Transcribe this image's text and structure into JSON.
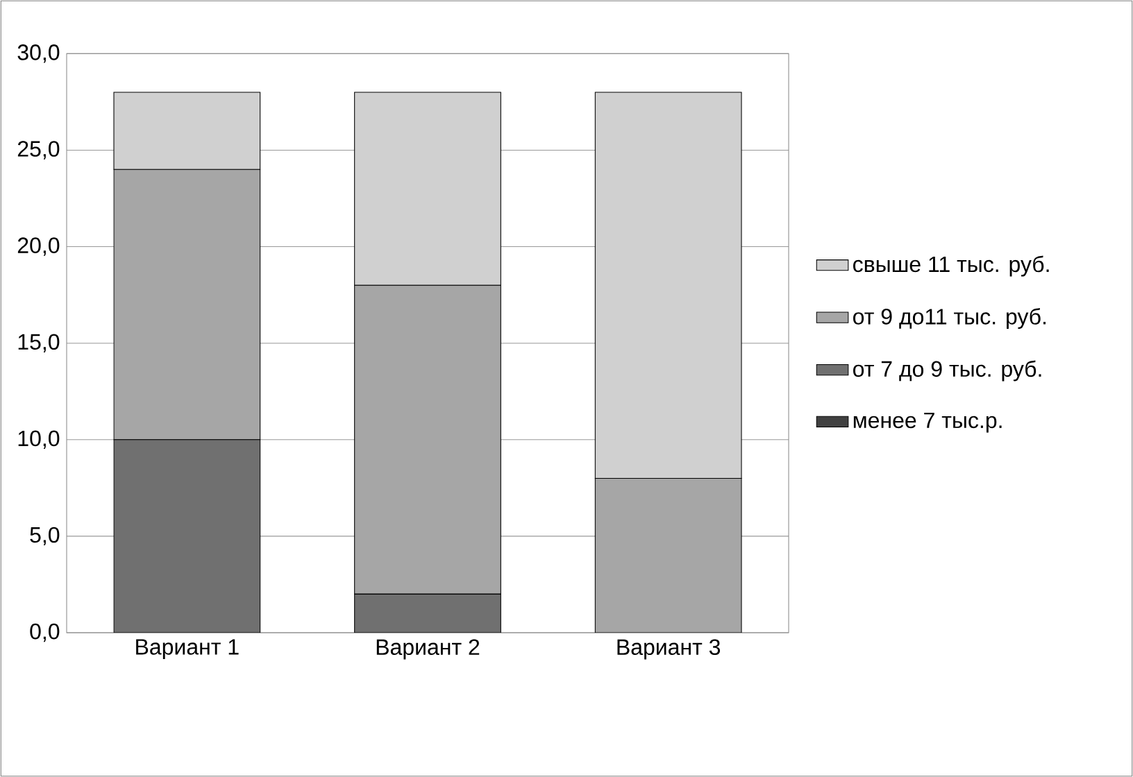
{
  "chart_data": {
    "type": "bar",
    "stacked": true,
    "categories": [
      "Вариант 1",
      "Вариант 2",
      "Вариант 3"
    ],
    "series": [
      {
        "name": "менее 7 тыс.р.",
        "color": "#404040",
        "values": [
          0,
          0,
          0
        ]
      },
      {
        "name": "от 7 до 9 тыс. руб.",
        "color": "#707070",
        "values": [
          10,
          2,
          0
        ]
      },
      {
        "name": "от 9 до11 тыс. руб.",
        "color": "#a6a6a6",
        "values": [
          14,
          16,
          8
        ]
      },
      {
        "name": "свыше 11 тыс. руб.",
        "color": "#d0d0d0",
        "values": [
          4,
          10,
          20
        ]
      }
    ],
    "ylim": [
      0,
      30
    ],
    "yticks": [
      {
        "value": 0,
        "label": "0,0"
      },
      {
        "value": 5,
        "label": "5,0"
      },
      {
        "value": 10,
        "label": "10,0"
      },
      {
        "value": 15,
        "label": "15,0"
      },
      {
        "value": 20,
        "label": "20,0"
      },
      {
        "value": 25,
        "label": "25,0"
      },
      {
        "value": 30,
        "label": "30,0"
      }
    ],
    "grid": "y",
    "legend": "right"
  }
}
